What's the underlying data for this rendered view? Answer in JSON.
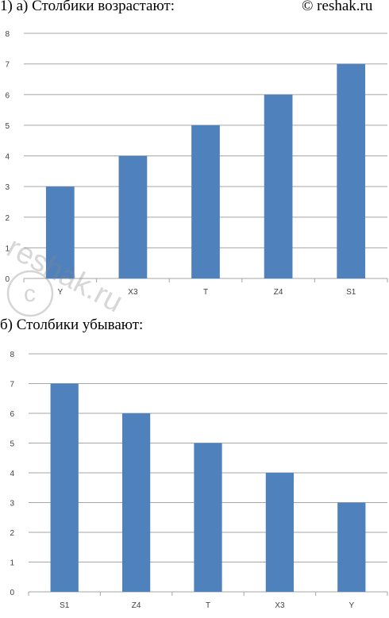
{
  "page": {
    "heading_a": "1) а) Столбики возрастают:",
    "copyright": "© reshak.ru",
    "heading_b": "б) Столбики убывают:",
    "watermark": "reshak.ru"
  },
  "colors": {
    "bar": "#4f81bd",
    "grid": "#a6a6a6",
    "axis_text": "#404040"
  },
  "chart_data": [
    {
      "type": "bar",
      "categories": [
        "Y",
        "X3",
        "T",
        "Z4",
        "S1"
      ],
      "values": [
        3,
        4,
        5,
        6,
        7
      ],
      "ylim": [
        0,
        8
      ],
      "yticks": [
        0,
        1,
        2,
        3,
        4,
        5,
        6,
        7,
        8
      ],
      "grid": true,
      "title": "",
      "xlabel": "",
      "ylabel": ""
    },
    {
      "type": "bar",
      "categories": [
        "S1",
        "Z4",
        "T",
        "X3",
        "Y"
      ],
      "values": [
        7,
        6,
        5,
        4,
        3
      ],
      "ylim": [
        0,
        8
      ],
      "yticks": [
        0,
        1,
        2,
        3,
        4,
        5,
        6,
        7,
        8
      ],
      "grid": true,
      "title": "",
      "xlabel": "",
      "ylabel": ""
    }
  ]
}
